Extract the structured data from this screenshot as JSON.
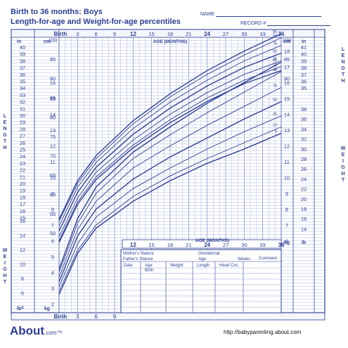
{
  "header": {
    "title_line1": "Birth to 36 months: Boys",
    "title_line2": "Length-for-age and Weight-for-age percentiles",
    "name_label": "NAME",
    "record_label": "RECORD #"
  },
  "footer": {
    "brand": "About",
    "brand_suffix": ".com",
    "tm": "™",
    "url": "http://babyparenting.about.com"
  },
  "colors": {
    "ink": "#2c3f93",
    "grid": "#7d8cc8",
    "panel": "#f4f6fc"
  },
  "chart_data": [
    {
      "type": "line",
      "title": "Length-for-age percentiles",
      "xlabel": "AGE (MONTHS)",
      "ylabel": "LENGTH",
      "x_ticks": [
        "Birth",
        "3",
        "6",
        "9",
        "12",
        "15",
        "18",
        "21",
        "24",
        "27",
        "30",
        "33",
        "36"
      ],
      "x": [
        0,
        3,
        6,
        12,
        18,
        24,
        30,
        36
      ],
      "xlim": [
        0,
        36
      ],
      "ylim_cm": [
        45,
        105
      ],
      "y_unit_left": "cm",
      "y_unit_right": "in",
      "series": [
        {
          "name": "95",
          "values": [
            53.5,
            63.5,
            70.0,
            79.0,
            86.0,
            92.0,
            97.0,
            101.5
          ]
        },
        {
          "name": "90",
          "values": [
            53.0,
            62.8,
            69.2,
            78.2,
            85.2,
            91.0,
            96.0,
            100.5
          ]
        },
        {
          "name": "75",
          "values": [
            51.8,
            61.8,
            68.2,
            77.0,
            83.8,
            89.5,
            94.5,
            98.5
          ]
        },
        {
          "name": "50",
          "values": [
            50.5,
            60.5,
            67.0,
            75.5,
            82.3,
            88.0,
            92.8,
            96.5
          ]
        },
        {
          "name": "25",
          "values": [
            49.0,
            59.0,
            65.7,
            74.0,
            80.7,
            86.3,
            91.0,
            94.5
          ]
        },
        {
          "name": "10",
          "values": [
            48.0,
            58.0,
            64.5,
            72.7,
            79.3,
            84.9,
            89.5,
            93.0
          ]
        },
        {
          "name": "5",
          "values": [
            47.5,
            57.4,
            63.8,
            72.0,
            78.5,
            84.0,
            88.6,
            92.0
          ]
        }
      ],
      "y_ticks_cm": [
        50,
        55,
        60,
        65,
        70,
        75,
        80,
        85,
        90,
        95,
        100
      ],
      "y_ticks_in_left": [
        "40",
        "39",
        "38",
        "37",
        "36",
        "35",
        "34",
        "33",
        "32",
        "31",
        "30",
        "29",
        "28",
        "27",
        "26",
        "25",
        "24",
        "23",
        "22",
        "21",
        "20",
        "19",
        "18",
        "17",
        "16",
        "15"
      ],
      "y_ticks_in_right": [
        "41",
        "40",
        "39",
        "38",
        "37",
        "36",
        "35"
      ],
      "right_cm_ticks": [
        "100",
        "95",
        "90"
      ]
    },
    {
      "type": "line",
      "title": "Weight-for-age percentiles",
      "xlabel": "AGE (MONTHS)",
      "ylabel": "WEIGHT",
      "x": [
        0,
        3,
        6,
        12,
        18,
        24,
        30,
        36
      ],
      "xlim": [
        0,
        36
      ],
      "ylim_kg": [
        1.5,
        18.5
      ],
      "y_unit_left": "kg",
      "y_unit_right": "lb",
      "series": [
        {
          "name": "95",
          "values": [
            4.2,
            7.4,
            9.4,
            11.6,
            13.2,
            14.7,
            16.0,
            17.3
          ]
        },
        {
          "name": "90",
          "values": [
            4.0,
            7.1,
            9.0,
            11.2,
            12.7,
            14.1,
            15.4,
            16.7
          ]
        },
        {
          "name": "75",
          "values": [
            3.7,
            6.7,
            8.5,
            10.6,
            12.0,
            13.3,
            14.5,
            15.7
          ]
        },
        {
          "name": "50",
          "values": [
            3.4,
            6.3,
            8.0,
            9.9,
            11.3,
            12.5,
            13.7,
            14.8
          ]
        },
        {
          "name": "25",
          "values": [
            3.1,
            5.8,
            7.5,
            9.3,
            10.6,
            11.8,
            12.9,
            13.9
          ]
        },
        {
          "name": "10",
          "values": [
            2.8,
            5.4,
            7.0,
            8.8,
            10.1,
            11.2,
            12.2,
            13.2
          ]
        },
        {
          "name": "5",
          "values": [
            2.6,
            5.2,
            6.8,
            8.5,
            9.8,
            10.9,
            11.8,
            12.8
          ]
        }
      ],
      "y_ticks_kg_left": [
        "16",
        "15",
        "14",
        "13",
        "12",
        "11",
        "10",
        "9",
        "8",
        "7",
        "6",
        "5",
        "4",
        "3",
        "2"
      ],
      "y_ticks_lb_left": [
        "16",
        "14",
        "12",
        "10",
        "8",
        "6",
        "4"
      ],
      "y_ticks_kg_right": [
        "18",
        "17",
        "16",
        "15",
        "14",
        "13",
        "12",
        "11",
        "10",
        "9",
        "8",
        "7",
        "6"
      ],
      "y_ticks_lb_right": [
        "38",
        "36",
        "34",
        "32",
        "30",
        "28",
        "26",
        "24",
        "22",
        "20",
        "18",
        "16",
        "14"
      ]
    }
  ],
  "lower_axis_label": "AGE (MONTHS)",
  "lower_x_ticks": [
    "12",
    "15",
    "18",
    "21",
    "24",
    "27",
    "30",
    "33",
    "36"
  ],
  "bottom_x_ticks": [
    "Birth",
    "3",
    "6",
    "9"
  ],
  "table": {
    "mother_stature": "Mother's Stature",
    "father_stature": "Father's Stature",
    "gestational": "Gestational",
    "age": "Age:",
    "weeks": "Weeks",
    "comment": "Comment",
    "columns": [
      "Date",
      "Age",
      "Weight",
      "Length",
      "Head Circ."
    ],
    "first_row_age": "Birth"
  },
  "side_labels": {
    "length": "LENGTH",
    "weight": "WEIGHT",
    "in": "in",
    "cm": "cm",
    "kg": "kg",
    "lb": "lb"
  }
}
